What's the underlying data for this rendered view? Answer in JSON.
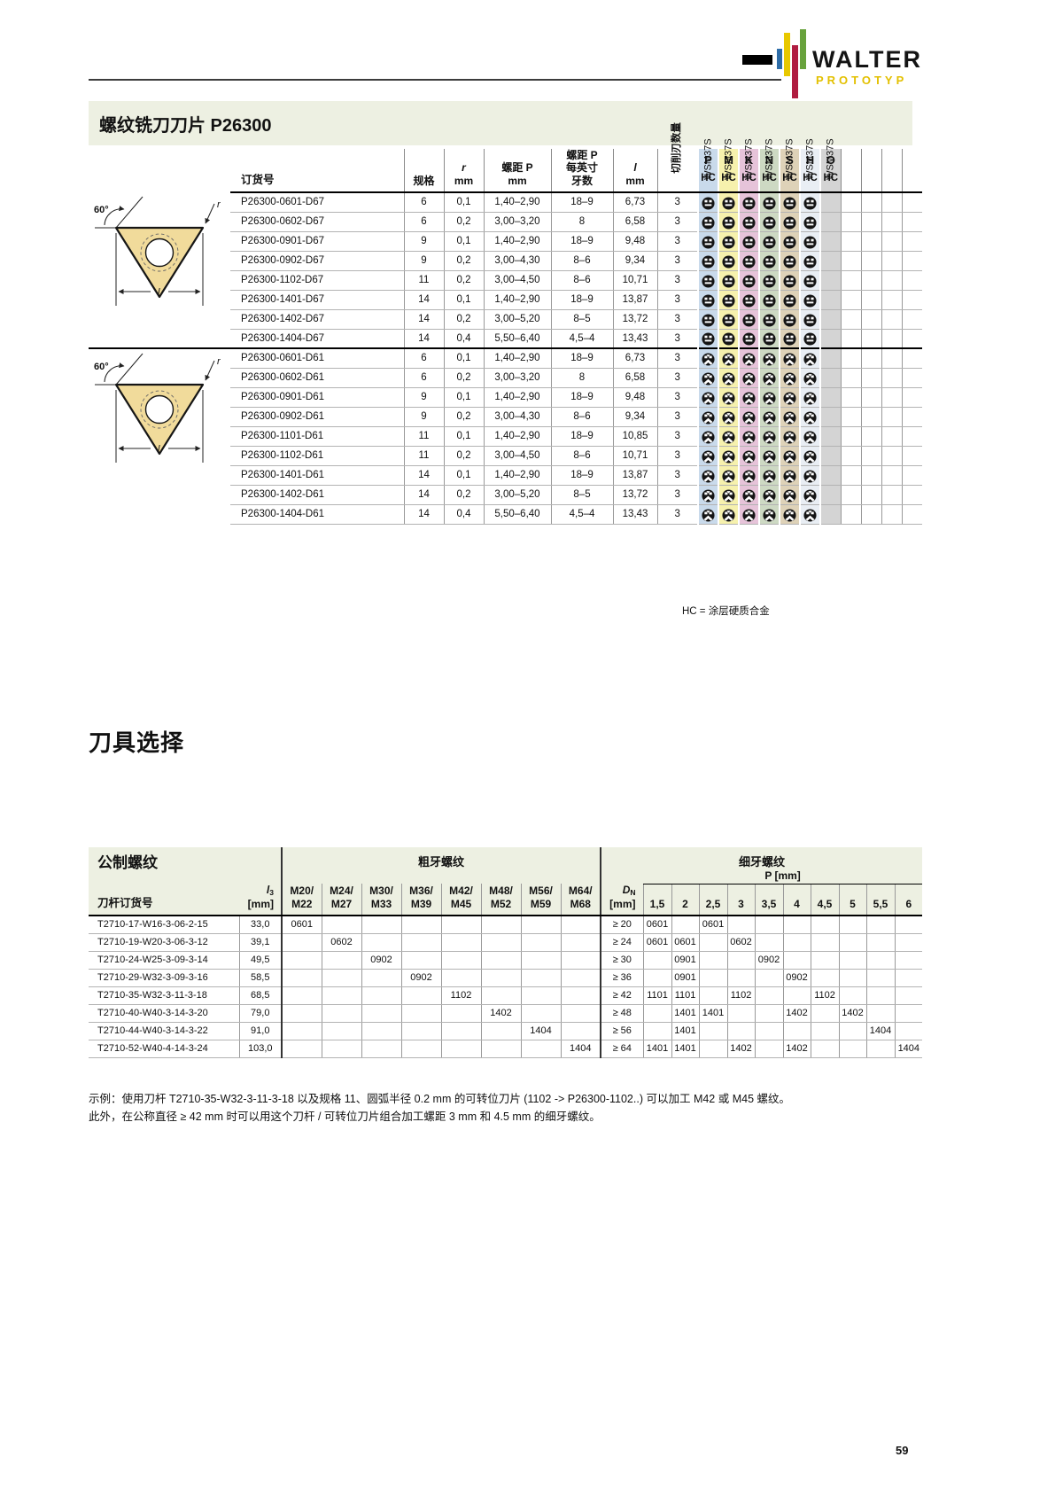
{
  "page": {
    "number": "59"
  },
  "logo": {
    "brand": "WALTER",
    "sub": "PROTOTYP"
  },
  "section1": {
    "title": "螺纹铣刀刀片 P26300",
    "diagram": {
      "angle": "60°",
      "r": "r",
      "l": "l"
    },
    "table": {
      "headers": {
        "order": "订货号",
        "spec": "规格",
        "r1": "r",
        "r2": "mm",
        "pitch1": "螺距 P",
        "pitch2": "mm",
        "tpi1": "螺距 P",
        "tpi2": "每英寸",
        "tpi3": "牙数",
        "l1": "l",
        "l2": "mm",
        "edges": "切削刃数量"
      },
      "materials": [
        {
          "letter": "P",
          "coating": "HC",
          "grade": "WSM37S",
          "color": "#c9daeb",
          "has_icon": true
        },
        {
          "letter": "M",
          "coating": "HC",
          "grade": "WSM37S",
          "color": "#f6f1ad",
          "has_icon": true
        },
        {
          "letter": "K",
          "coating": "HC",
          "grade": "WSM37S",
          "color": "#e6c3d9",
          "has_icon": true
        },
        {
          "letter": "N",
          "coating": "HC",
          "grade": "WSM37S",
          "color": "#cdd9c3",
          "has_icon": true
        },
        {
          "letter": "S",
          "coating": "HC",
          "grade": "WSM37S",
          "color": "#ded2b8",
          "has_icon": true
        },
        {
          "letter": "H",
          "coating": "HC",
          "grade": "WSM37S",
          "color": "#e9eef4",
          "has_icon": true
        },
        {
          "letter": "O",
          "coating": "HC",
          "grade": "WSM37S",
          "color": "#d4d4d4",
          "has_icon": false
        }
      ],
      "empty_cols": 4,
      "groups": [
        {
          "icon": "d67-insert-icon",
          "rows": [
            {
              "order": "P26300-0601-D67",
              "spec": "6",
              "r": "0,1",
              "pitch": "1,40–2,90",
              "tpi": "18–9",
              "l": "6,73",
              "edges": "3"
            },
            {
              "order": "P26300-0602-D67",
              "spec": "6",
              "r": "0,2",
              "pitch": "3,00–3,20",
              "tpi": "8",
              "l": "6,58",
              "edges": "3"
            },
            {
              "order": "P26300-0901-D67",
              "spec": "9",
              "r": "0,1",
              "pitch": "1,40–2,90",
              "tpi": "18–9",
              "l": "9,48",
              "edges": "3"
            },
            {
              "order": "P26300-0902-D67",
              "spec": "9",
              "r": "0,2",
              "pitch": "3,00–4,30",
              "tpi": "8–6",
              "l": "9,34",
              "edges": "3"
            },
            {
              "order": "P26300-1102-D67",
              "spec": "11",
              "r": "0,2",
              "pitch": "3,00–4,50",
              "tpi": "8–6",
              "l": "10,71",
              "edges": "3"
            },
            {
              "order": "P26300-1401-D67",
              "spec": "14",
              "r": "0,1",
              "pitch": "1,40–2,90",
              "tpi": "18–9",
              "l": "13,87",
              "edges": "3"
            },
            {
              "order": "P26300-1402-D67",
              "spec": "14",
              "r": "0,2",
              "pitch": "3,00–5,20",
              "tpi": "8–5",
              "l": "13,72",
              "edges": "3"
            },
            {
              "order": "P26300-1404-D67",
              "spec": "14",
              "r": "0,4",
              "pitch": "5,50–6,40",
              "tpi": "4,5–4",
              "l": "13,43",
              "edges": "3"
            }
          ]
        },
        {
          "icon": "d61-insert-icon",
          "rows": [
            {
              "order": "P26300-0601-D61",
              "spec": "6",
              "r": "0,1",
              "pitch": "1,40–2,90",
              "tpi": "18–9",
              "l": "6,73",
              "edges": "3"
            },
            {
              "order": "P26300-0602-D61",
              "spec": "6",
              "r": "0,2",
              "pitch": "3,00–3,20",
              "tpi": "8",
              "l": "6,58",
              "edges": "3"
            },
            {
              "order": "P26300-0901-D61",
              "spec": "9",
              "r": "0,1",
              "pitch": "1,40–2,90",
              "tpi": "18–9",
              "l": "9,48",
              "edges": "3"
            },
            {
              "order": "P26300-0902-D61",
              "spec": "9",
              "r": "0,2",
              "pitch": "3,00–4,30",
              "tpi": "8–6",
              "l": "9,34",
              "edges": "3"
            },
            {
              "order": "P26300-1101-D61",
              "spec": "11",
              "r": "0,1",
              "pitch": "1,40–2,90",
              "tpi": "18–9",
              "l": "10,85",
              "edges": "3"
            },
            {
              "order": "P26300-1102-D61",
              "spec": "11",
              "r": "0,2",
              "pitch": "3,00–4,50",
              "tpi": "8–6",
              "l": "10,71",
              "edges": "3"
            },
            {
              "order": "P26300-1401-D61",
              "spec": "14",
              "r": "0,1",
              "pitch": "1,40–2,90",
              "tpi": "18–9",
              "l": "13,87",
              "edges": "3"
            },
            {
              "order": "P26300-1402-D61",
              "spec": "14",
              "r": "0,2",
              "pitch": "3,00–5,20",
              "tpi": "8–5",
              "l": "13,72",
              "edges": "3"
            },
            {
              "order": "P26300-1404-D61",
              "spec": "14",
              "r": "0,4",
              "pitch": "5,50–6,40",
              "tpi": "4,5–4",
              "l": "13,43",
              "edges": "3"
            }
          ]
        }
      ],
      "footnote": "HC = 涂层硬质合金"
    }
  },
  "section2": {
    "title": "刀具选择",
    "table": {
      "metric_header": "公制螺纹",
      "coarse_header": "粗牙螺纹",
      "fine_header": "细牙螺纹",
      "p_mm_header": "P [mm]",
      "order_header": "刀杆订货号",
      "l3": {
        "base": "l",
        "sub": "3",
        "unit": "[mm]"
      },
      "dn": {
        "base": "D",
        "sub": "N",
        "unit": "[mm]"
      },
      "coarse_cols": [
        {
          "top": "M20/",
          "bottom": "M22"
        },
        {
          "top": "M24/",
          "bottom": "M27"
        },
        {
          "top": "M30/",
          "bottom": "M33"
        },
        {
          "top": "M36/",
          "bottom": "M39"
        },
        {
          "top": "M42/",
          "bottom": "M45"
        },
        {
          "top": "M48/",
          "bottom": "M52"
        },
        {
          "top": "M56/",
          "bottom": "M59"
        },
        {
          "top": "M64/",
          "bottom": "M68"
        }
      ],
      "pitch_cols": [
        "1,5",
        "2",
        "2,5",
        "3",
        "3,5",
        "4",
        "4,5",
        "5",
        "5,5",
        "6"
      ],
      "rows": [
        {
          "order": "T2710-17-W16-3-06-2-15",
          "l3": "33,0",
          "coarse": [
            "0601",
            "",
            "",
            "",
            "",
            "",
            "",
            ""
          ],
          "dn": "≥ 20",
          "fine": [
            "0601",
            "",
            "0601",
            "",
            "",
            "",
            "",
            "",
            "",
            ""
          ]
        },
        {
          "order": "T2710-19-W20-3-06-3-12",
          "l3": "39,1",
          "coarse": [
            "",
            "0602",
            "",
            "",
            "",
            "",
            "",
            ""
          ],
          "dn": "≥ 24",
          "fine": [
            "0601",
            "0601",
            "",
            "0602",
            "",
            "",
            "",
            "",
            "",
            ""
          ]
        },
        {
          "order": "T2710-24-W25-3-09-3-14",
          "l3": "49,5",
          "coarse": [
            "",
            "",
            "0902",
            "",
            "",
            "",
            "",
            ""
          ],
          "dn": "≥ 30",
          "fine": [
            "",
            "0901",
            "",
            "",
            "0902",
            "",
            "",
            "",
            "",
            ""
          ]
        },
        {
          "order": "T2710-29-W32-3-09-3-16",
          "l3": "58,5",
          "coarse": [
            "",
            "",
            "",
            "0902",
            "",
            "",
            "",
            ""
          ],
          "dn": "≥ 36",
          "fine": [
            "",
            "0901",
            "",
            "",
            "",
            "0902",
            "",
            "",
            "",
            ""
          ]
        },
        {
          "order": "T2710-35-W32-3-11-3-18",
          "l3": "68,5",
          "coarse": [
            "",
            "",
            "",
            "",
            "1102",
            "",
            "",
            ""
          ],
          "dn": "≥ 42",
          "fine": [
            "1101",
            "1101",
            "",
            "1102",
            "",
            "",
            "1102",
            "",
            "",
            ""
          ]
        },
        {
          "order": "T2710-40-W40-3-14-3-20",
          "l3": "79,0",
          "coarse": [
            "",
            "",
            "",
            "",
            "",
            "1402",
            "",
            ""
          ],
          "dn": "≥ 48",
          "fine": [
            "",
            "1401",
            "1401",
            "",
            "",
            "1402",
            "",
            "1402",
            "",
            ""
          ]
        },
        {
          "order": "T2710-44-W40-3-14-3-22",
          "l3": "91,0",
          "coarse": [
            "",
            "",
            "",
            "",
            "",
            "",
            "1404",
            ""
          ],
          "dn": "≥ 56",
          "fine": [
            "",
            "1401",
            "",
            "",
            "",
            "",
            "",
            "",
            "1404",
            ""
          ]
        },
        {
          "order": "T2710-52-W40-4-14-3-24",
          "l3": "103,0",
          "coarse": [
            "",
            "",
            "",
            "",
            "",
            "",
            "",
            "1404"
          ],
          "dn": "≥ 64",
          "fine": [
            "1401",
            "1401",
            "",
            "1402",
            "",
            "1402",
            "",
            "",
            "",
            "1404"
          ]
        }
      ]
    },
    "note1": "示例：使用刀杆 T2710-35-W32-3-11-3-18 以及规格 11、圆弧半径 0.2 mm 的可转位刀片 (1102 -> P26300-1102..) 可以加工 M42 或 M45 螺纹。",
    "note2": "此外，在公称直径 ≥ 42 mm 时可以用这个刀杆 / 可转位刀片组合加工螺距 3 mm 和 4.5 mm 的细牙螺纹。"
  }
}
